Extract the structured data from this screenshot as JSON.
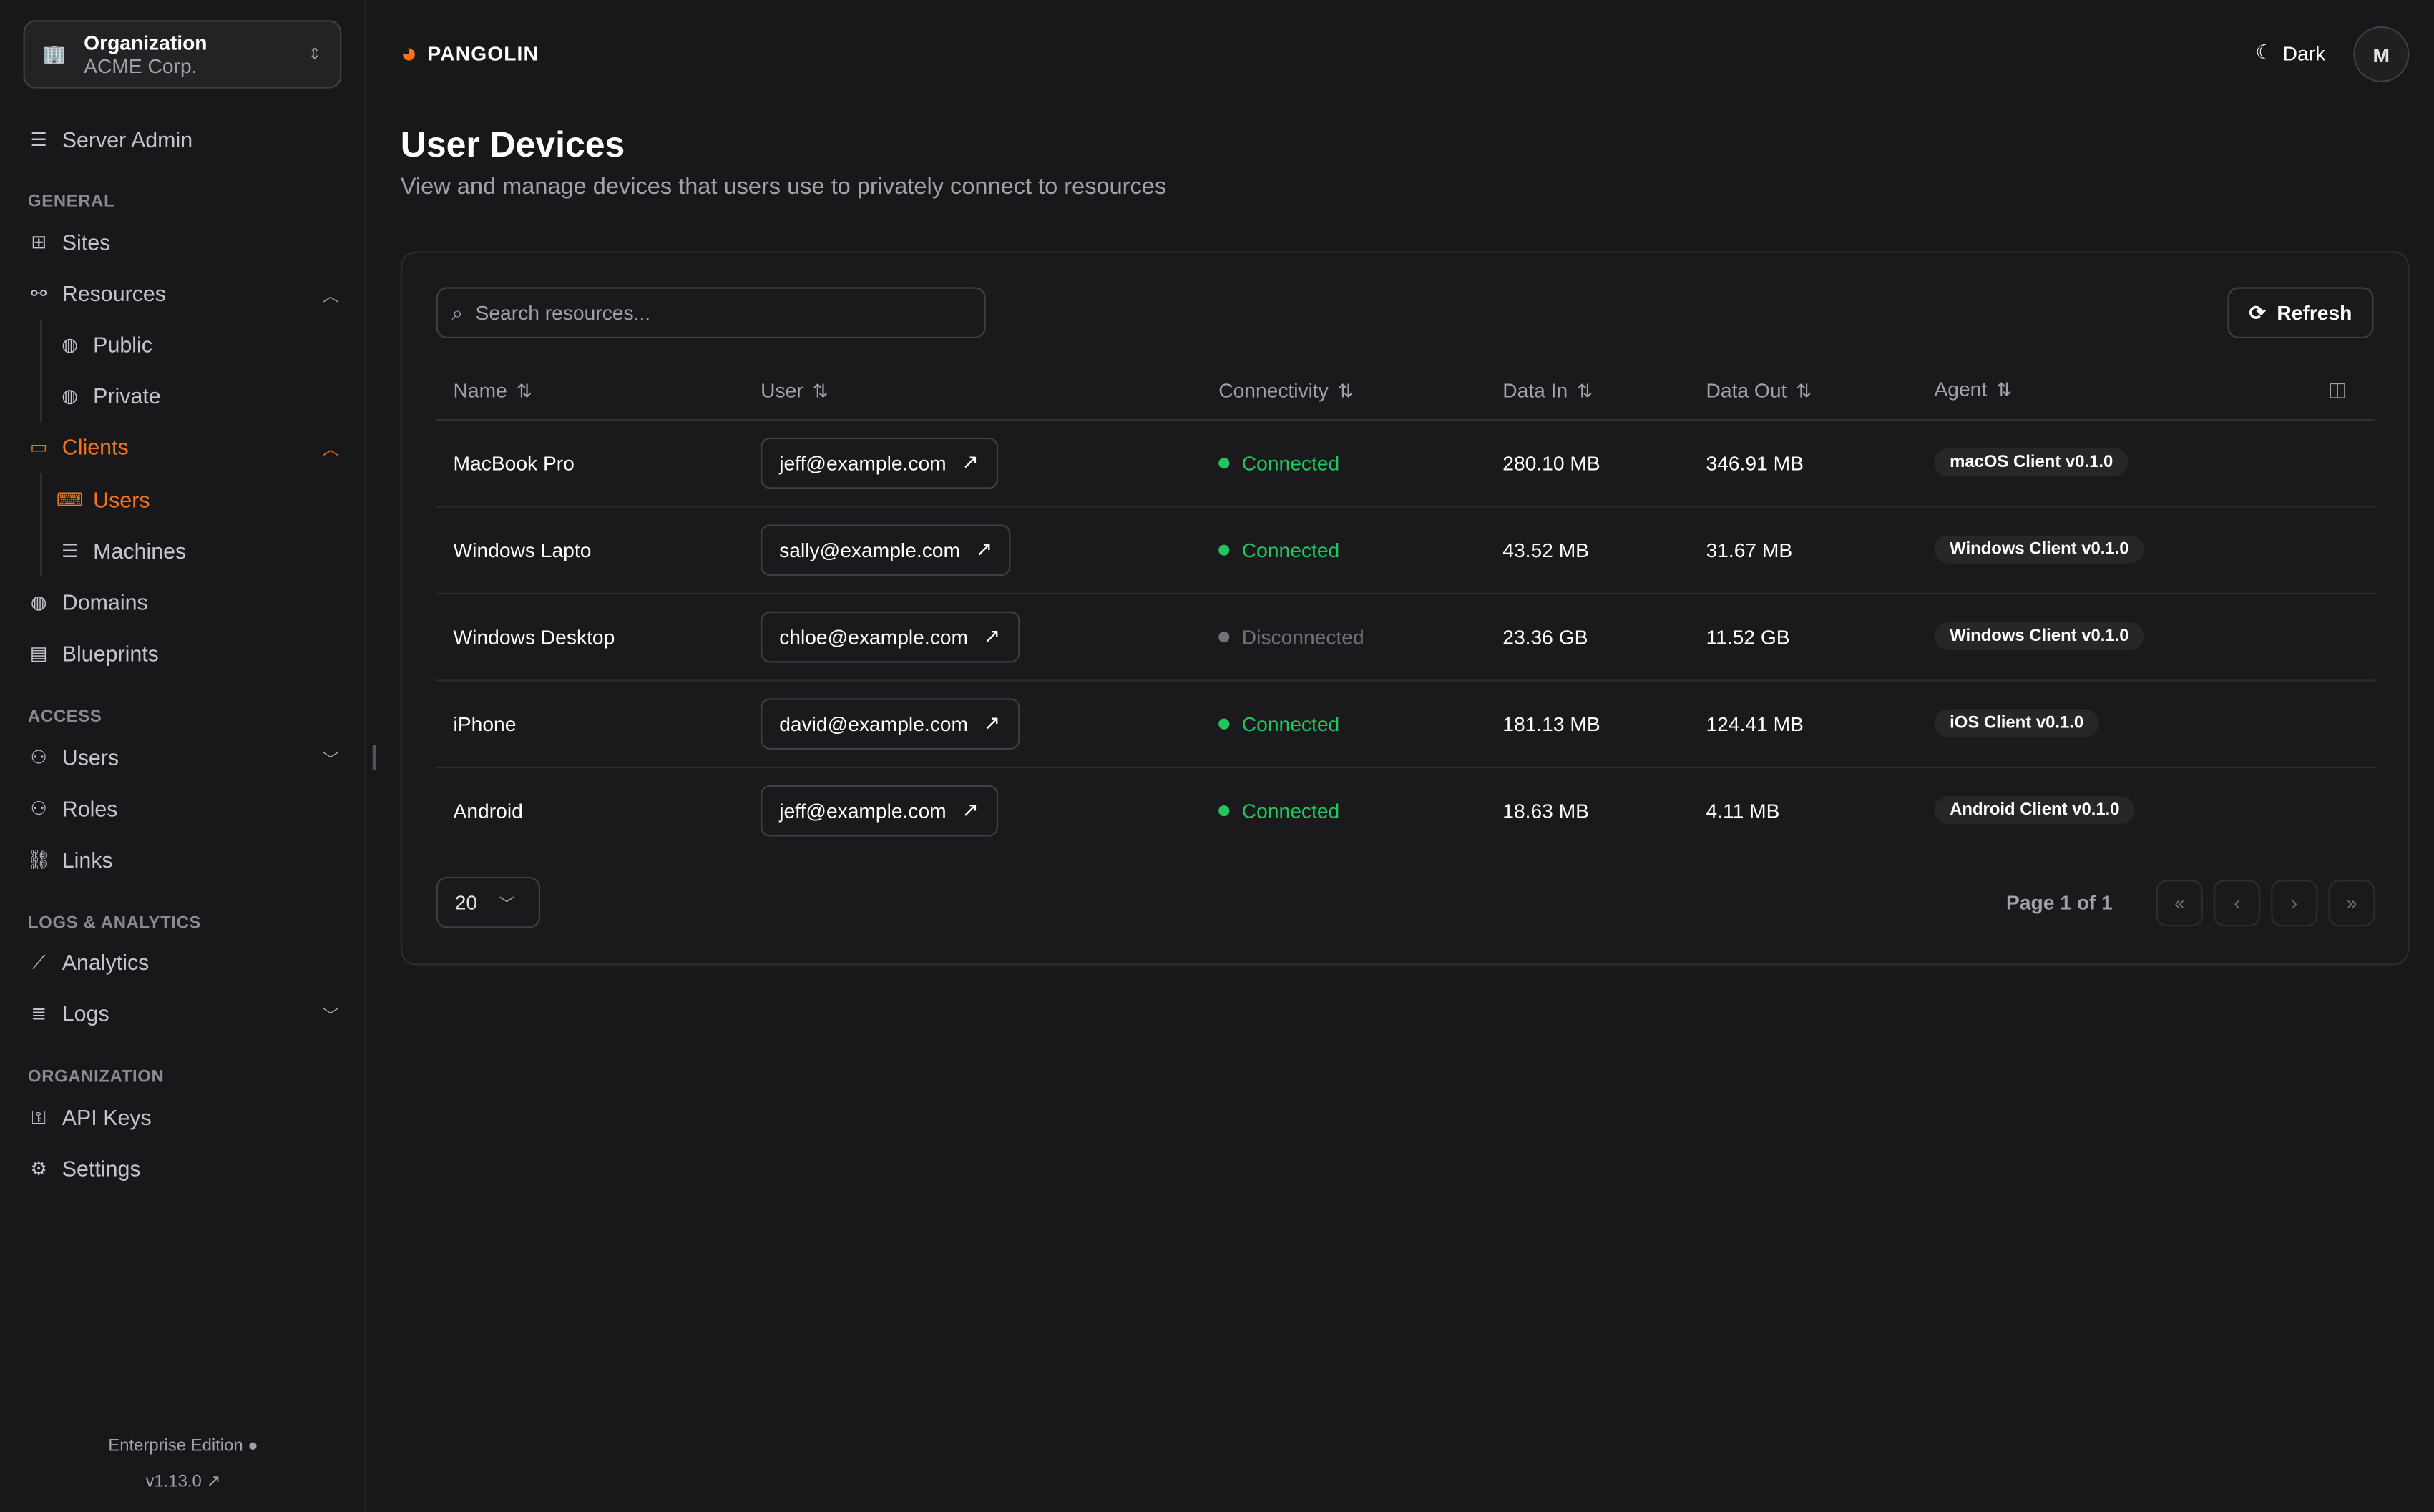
{
  "org": {
    "label": "Organization",
    "name": "ACME Corp."
  },
  "sidebar": {
    "server_admin": "Server Admin",
    "sections": {
      "general": "GENERAL",
      "access": "ACCESS",
      "logs": "LOGS & ANALYTICS",
      "organization": "ORGANIZATION"
    },
    "items": {
      "sites": "Sites",
      "resources": "Resources",
      "public": "Public",
      "private": "Private",
      "clients": "Clients",
      "users_sub": "Users",
      "machines": "Machines",
      "domains": "Domains",
      "blueprints": "Blueprints",
      "users": "Users",
      "roles": "Roles",
      "links": "Links",
      "analytics": "Analytics",
      "logs": "Logs",
      "api_keys": "API Keys",
      "settings": "Settings"
    },
    "edition": "Enterprise Edition",
    "version": "v1.13.0"
  },
  "header": {
    "brand": "PANGOLIN",
    "theme": "Dark",
    "avatar": "M"
  },
  "page": {
    "title": "User Devices",
    "subtitle": "View and manage devices that users use to privately connect to resources"
  },
  "toolbar": {
    "search_placeholder": "Search resources...",
    "refresh": "Refresh"
  },
  "table": {
    "columns": [
      "Name",
      "User",
      "Connectivity",
      "Data In",
      "Data Out",
      "Agent"
    ],
    "rows": [
      {
        "name": "MacBook Pro",
        "user": "jeff@example.com",
        "status": "Connected",
        "data_in": "280.10 MB",
        "data_out": "346.91 MB",
        "agent": "macOS Client v0.1.0"
      },
      {
        "name": "Windows Lapto",
        "user": "sally@example.com",
        "status": "Connected",
        "data_in": "43.52 MB",
        "data_out": "31.67 MB",
        "agent": "Windows Client v0.1.0"
      },
      {
        "name": "Windows Desktop",
        "user": "chloe@example.com",
        "status": "Disconnected",
        "data_in": "23.36 GB",
        "data_out": "11.52 GB",
        "agent": "Windows Client v0.1.0"
      },
      {
        "name": "iPhone",
        "user": "david@example.com",
        "status": "Connected",
        "data_in": "181.13 MB",
        "data_out": "124.41 MB",
        "agent": "iOS Client v0.1.0"
      },
      {
        "name": "Android",
        "user": "jeff@example.com",
        "status": "Connected",
        "data_in": "18.63 MB",
        "data_out": "4.11 MB",
        "agent": "Android Client v0.1.0"
      }
    ]
  },
  "pagination": {
    "page_size": "20",
    "page_info": "Page 1 of 1"
  },
  "colors": {
    "accent": "#f97316",
    "connected": "#22c55e",
    "disconnected": "#71717a"
  }
}
